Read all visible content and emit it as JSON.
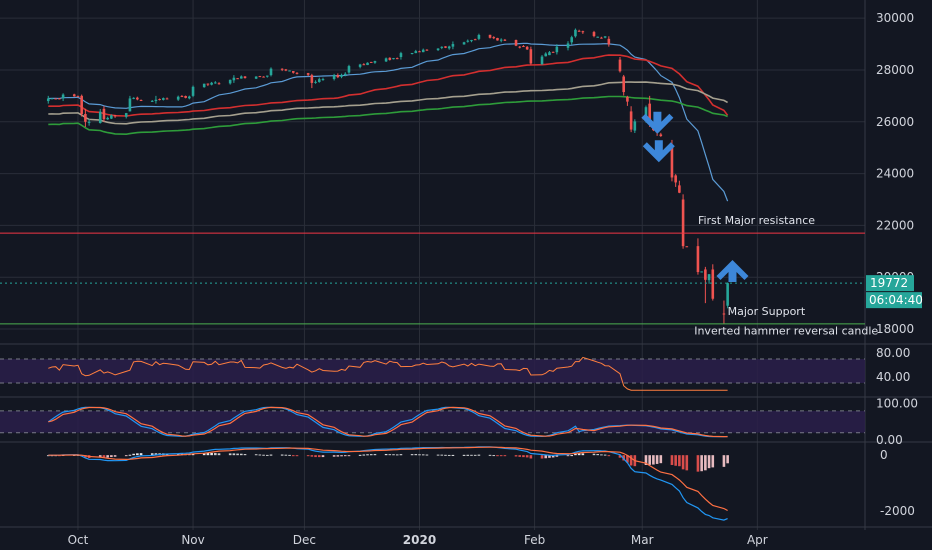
{
  "chart_data": {
    "type": "line",
    "title": "",
    "main_panel": {
      "type": "candlestick",
      "ylim": [
        17500,
        30700
      ],
      "yticks": [
        "30000",
        "28000",
        "26000",
        "24000",
        "22000",
        "20000",
        "18000"
      ],
      "last_price_label": "19772",
      "countdown_label": "06:04:40",
      "colors": {
        "up": "#26a69a",
        "down": "#ef5350"
      },
      "candle_sketch": [
        {
          "d": "2019-09-23",
          "o": 26800,
          "h": 27000,
          "l": 26700,
          "c": 26900
        },
        {
          "d": "2019-09-27",
          "o": 26900,
          "h": 27100,
          "l": 26800,
          "c": 27050
        },
        {
          "d": "2019-10-02",
          "o": 27000,
          "h": 27050,
          "l": 26200,
          "c": 26300
        },
        {
          "d": "2019-10-03",
          "o": 26300,
          "h": 26500,
          "l": 25800,
          "c": 26000
        },
        {
          "d": "2019-10-08",
          "o": 26500,
          "h": 26600,
          "l": 26000,
          "c": 26100
        },
        {
          "d": "2019-10-15",
          "o": 26400,
          "h": 27000,
          "l": 26400,
          "c": 26900
        },
        {
          "d": "2019-10-22",
          "o": 26800,
          "h": 27000,
          "l": 26700,
          "c": 26850
        },
        {
          "d": "2019-11-01",
          "o": 27000,
          "h": 27400,
          "l": 26950,
          "c": 27350
        },
        {
          "d": "2019-11-12",
          "o": 27600,
          "h": 27800,
          "l": 27500,
          "c": 27700
        },
        {
          "d": "2019-11-22",
          "o": 27800,
          "h": 28100,
          "l": 27750,
          "c": 28050
        },
        {
          "d": "2019-12-03",
          "o": 27800,
          "h": 27850,
          "l": 27300,
          "c": 27500
        },
        {
          "d": "2019-12-13",
          "o": 27900,
          "h": 28200,
          "l": 27850,
          "c": 28150
        },
        {
          "d": "2019-12-27",
          "o": 28500,
          "h": 28700,
          "l": 28400,
          "c": 28650
        },
        {
          "d": "2020-01-10",
          "o": 28900,
          "h": 29100,
          "l": 28800,
          "c": 29000
        },
        {
          "d": "2020-01-17",
          "o": 29200,
          "h": 29400,
          "l": 29150,
          "c": 29350
        },
        {
          "d": "2020-01-31",
          "o": 28800,
          "h": 28900,
          "l": 28200,
          "c": 28250
        },
        {
          "d": "2020-02-12",
          "o": 29300,
          "h": 29600,
          "l": 29250,
          "c": 29550
        },
        {
          "d": "2020-02-21",
          "o": 29200,
          "h": 29300,
          "l": 28900,
          "c": 28990
        },
        {
          "d": "2020-02-24",
          "o": 28400,
          "h": 28500,
          "l": 27900,
          "c": 27950
        },
        {
          "d": "2020-02-27",
          "o": 26400,
          "h": 26600,
          "l": 25600,
          "c": 25700
        },
        {
          "d": "2020-03-03",
          "o": 26700,
          "h": 27000,
          "l": 25800,
          "c": 25900
        },
        {
          "d": "2020-03-09",
          "o": 25000,
          "h": 25300,
          "l": 23700,
          "c": 23850
        },
        {
          "d": "2020-03-12",
          "o": 23000,
          "h": 23200,
          "l": 21100,
          "c": 21200
        },
        {
          "d": "2020-03-16",
          "o": 21200,
          "h": 21500,
          "l": 20100,
          "c": 20200
        },
        {
          "d": "2020-03-18",
          "o": 20300,
          "h": 20400,
          "l": 19000,
          "c": 19900
        },
        {
          "d": "2020-03-20",
          "o": 20300,
          "h": 20500,
          "l": 19100,
          "c": 19170
        },
        {
          "d": "2020-03-23",
          "o": 18600,
          "h": 19100,
          "l": 18200,
          "c": 18590
        },
        {
          "d": "2020-03-24",
          "o": 18900,
          "h": 19800,
          "l": 18800,
          "c": 19772
        }
      ],
      "hlines": [
        {
          "y": 21700,
          "color": "#f23645"
        },
        {
          "y": 19772,
          "color": "#26a69a",
          "dashed": true
        },
        {
          "y": 18200,
          "color": "#4caf50"
        }
      ],
      "annotations": [
        {
          "text": "First Major resistance",
          "d": "2020-03-16",
          "y": 22050
        },
        {
          "text": "Major Support",
          "d": "2020-03-24",
          "y": 18550
        },
        {
          "text": "Inverted hammer reversal candle",
          "d": "2020-03-15",
          "y": 17780
        }
      ]
    },
    "indicator_panels": [
      {
        "name": "rsi",
        "yticks": [
          "80.00",
          "40.00"
        ],
        "band": [
          30,
          70
        ],
        "ylim": [
          10,
          90
        ]
      },
      {
        "name": "stochastic",
        "yticks": [
          "100.00",
          "0.00"
        ],
        "band": [
          20,
          80
        ],
        "ylim": [
          0,
          110
        ]
      },
      {
        "name": "macd",
        "yticks": [
          "0",
          "-2000"
        ],
        "ylim": [
          -2500,
          400
        ]
      }
    ],
    "x_axis": {
      "range": [
        "2019-09-10",
        "2020-04-30"
      ],
      "ticks": [
        {
          "label": "Oct",
          "d": "2019-10-01"
        },
        {
          "label": "Nov",
          "d": "2019-11-01"
        },
        {
          "label": "Dec",
          "d": "2019-12-01"
        },
        {
          "label": "2020",
          "d": "2020-01-01",
          "bold": true
        },
        {
          "label": "Feb",
          "d": "2020-02-01"
        },
        {
          "label": "Mar",
          "d": "2020-03-01"
        },
        {
          "label": "Apr",
          "d": "2020-04-01"
        }
      ]
    },
    "grid": true
  }
}
